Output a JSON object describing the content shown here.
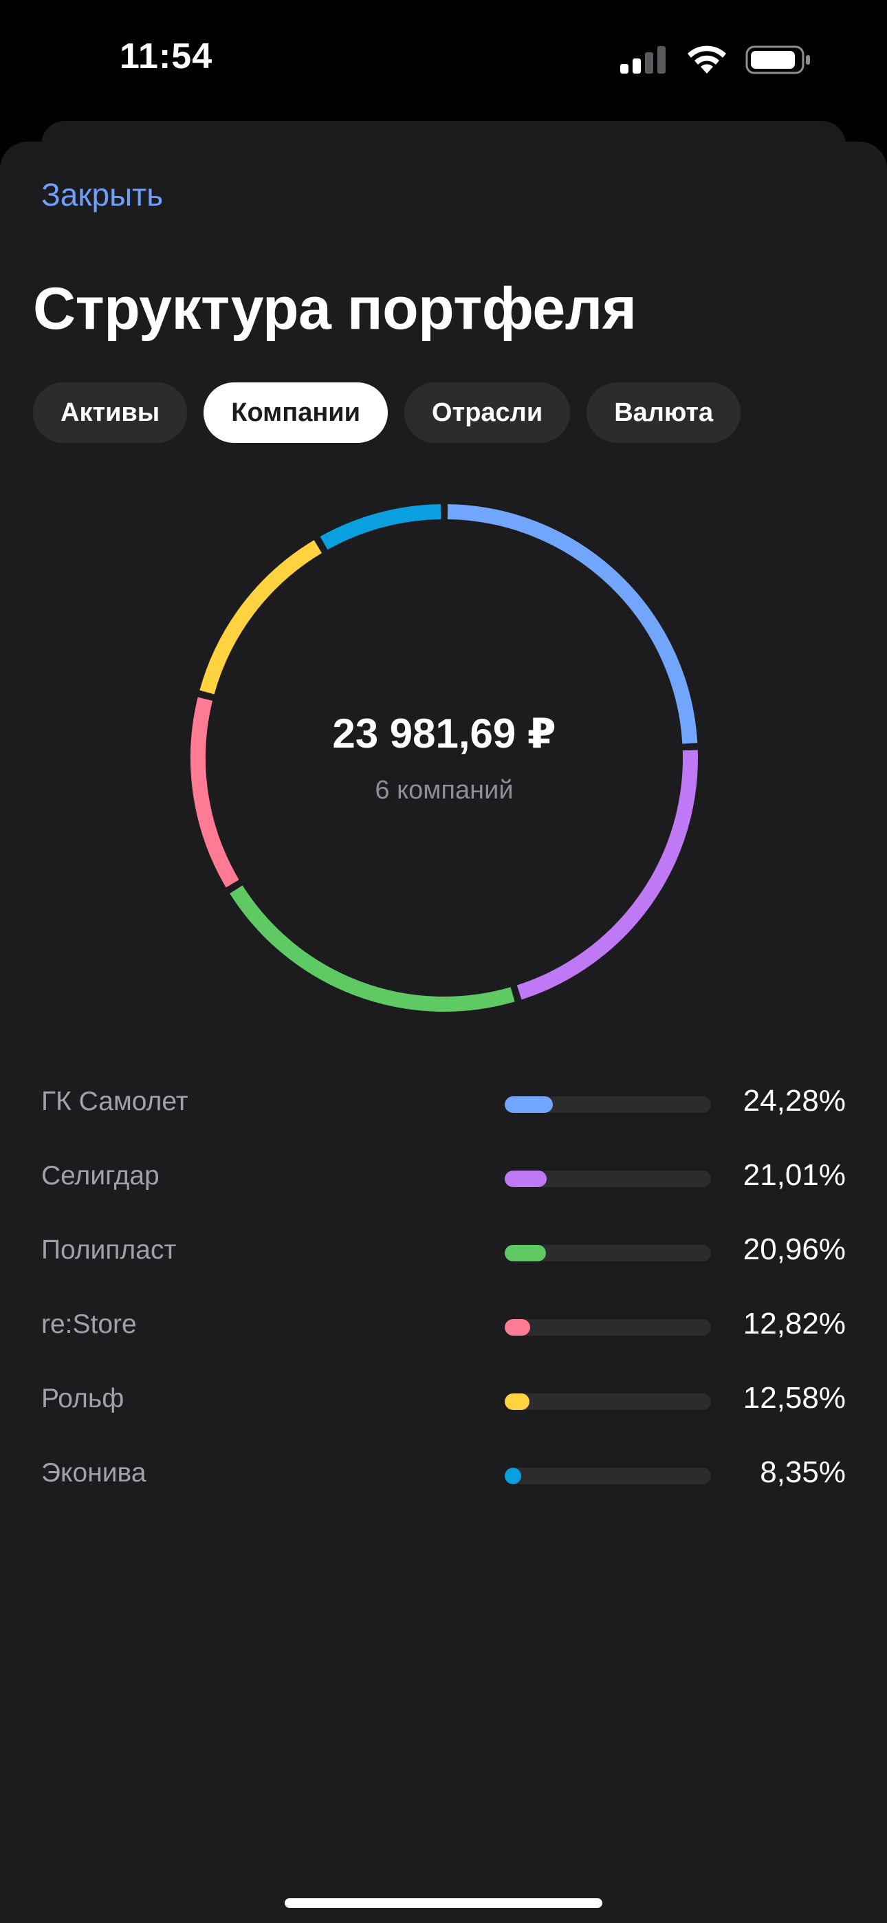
{
  "status_bar": {
    "time": "11:54",
    "icons": [
      "signal-icon",
      "wifi-icon",
      "battery-icon"
    ]
  },
  "header": {
    "close_label": "Закрыть",
    "title": "Структура портфеля"
  },
  "tabs": [
    {
      "label": "Активы",
      "active": false
    },
    {
      "label": "Компании",
      "active": true
    },
    {
      "label": "Отрасли",
      "active": false
    },
    {
      "label": "Валюта",
      "active": false
    }
  ],
  "summary": {
    "total": "23 981,69 ₽",
    "count_label": "6 компаний"
  },
  "chart_data": {
    "type": "pie",
    "categories": [
      "ГК Самолет",
      "Селигдар",
      "Полипласт",
      "re:Store",
      "Рольф",
      "Эконива"
    ],
    "values": [
      24.28,
      21.01,
      20.96,
      12.82,
      12.58,
      8.35
    ],
    "colors": [
      "#72a5fc",
      "#bf79f5",
      "#5fc964",
      "#ff7a93",
      "#ffd23f",
      "#0a9fde"
    ]
  },
  "legend": [
    {
      "name": "ГК Самолет",
      "percent": "24,28%",
      "value": 24.28,
      "color": "#72a5fc"
    },
    {
      "name": "Селигдар",
      "percent": "21,01%",
      "value": 21.01,
      "color": "#bf79f5"
    },
    {
      "name": "Полипласт",
      "percent": "20,96%",
      "value": 20.96,
      "color": "#5fc964"
    },
    {
      "name": "re:Store",
      "percent": "12,82%",
      "value": 12.82,
      "color": "#ff7a93"
    },
    {
      "name": "Рольф",
      "percent": "12,58%",
      "value": 12.58,
      "color": "#ffd23f"
    },
    {
      "name": "Эконива",
      "percent": "8,35%",
      "value": 8.35,
      "color": "#0a9fde"
    }
  ],
  "colors": {
    "accent": "#6f9ffa",
    "background": "#1c1c1e",
    "track": "#2c2c2e"
  }
}
